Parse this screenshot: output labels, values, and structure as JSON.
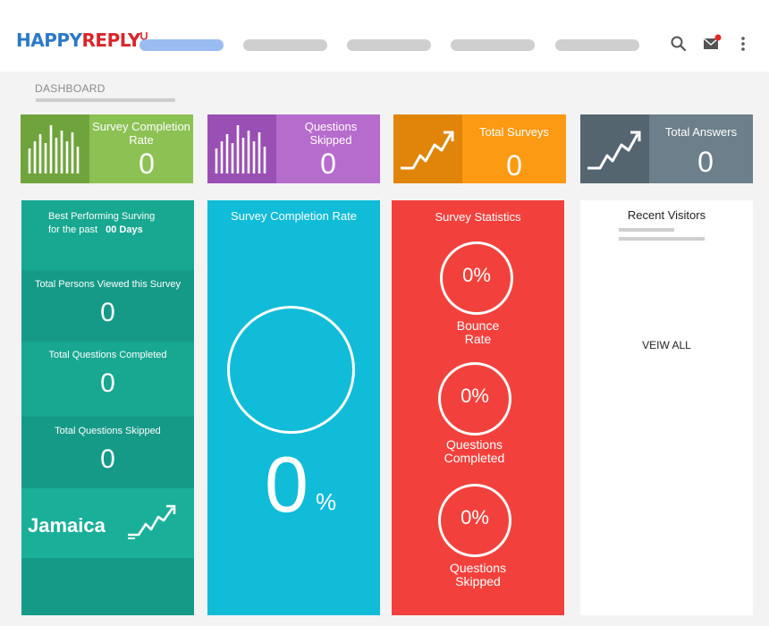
{
  "header": {
    "logo_part1": "HAPPY",
    "logo_part2": "REPLY",
    "search_icon": "search-icon",
    "mail_icon": "mail-icon",
    "menu_icon": "kebab-menu-icon"
  },
  "breadcrumb": {
    "label": "DASHBOARD"
  },
  "stat_cards": [
    {
      "title": "Survey Completion Rate",
      "value": "0",
      "color": "#8cc153",
      "icon_bg": "#6fa43d",
      "icon": "bar-chart-icon"
    },
    {
      "title": "Questions Skipped",
      "value": "0",
      "color": "#b66ccc",
      "icon_bg": "#9a4fb4",
      "icon": "bar-chart-icon"
    },
    {
      "title": "Total Surveys",
      "value": "0",
      "color": "#fd9a13",
      "icon_bg": "#e0840a",
      "icon": "trend-up-icon"
    },
    {
      "title": "Total Answers",
      "value": "0",
      "color": "#6c7f8a",
      "icon_bg": "#54656f",
      "icon": "trend-up-icon"
    }
  ],
  "best_performing": {
    "line1": "Best Performing Surving",
    "line2_prefix": "for the  past",
    "line2_days": "00 Days",
    "sections": [
      {
        "label": "Total Persons Viewed  this Survey",
        "value": "0"
      },
      {
        "label": "Total Questions  Completed",
        "value": "0"
      },
      {
        "label": "Total Questions Skipped",
        "value": "0"
      }
    ],
    "country": "Jamaica"
  },
  "completion_panel": {
    "title": "Survey Completion Rate",
    "value": "0",
    "unit": "%"
  },
  "statistics_panel": {
    "title": "Survey Statistics",
    "items": [
      {
        "value": "0%",
        "label_line1": "Bounce",
        "label_line2": "Rate"
      },
      {
        "value": "0%",
        "label_line1": "Questions",
        "label_line2": "Completed"
      },
      {
        "value": "0%",
        "label_line1": "Questions",
        "label_line2": "Skipped"
      }
    ]
  },
  "visitors_panel": {
    "title": "Recent Visitors",
    "view_all": "VEIW ALL"
  }
}
